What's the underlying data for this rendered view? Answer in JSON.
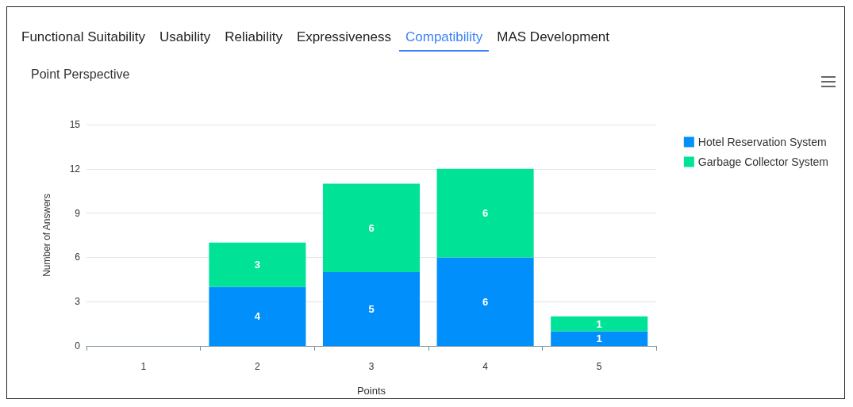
{
  "chart_data": {
    "type": "bar",
    "title": "Point Perspective",
    "xlabel": "Points",
    "ylabel": "Number of Answers",
    "annotations": [
      "Functional Suitability",
      "Usability",
      "Reliability",
      "Expressiveness",
      "Compatibility",
      "MAS Development"
    ],
    "categories": [
      "1",
      "2",
      "3",
      "4",
      "5"
    ],
    "series": [
      {
        "name": "Hotel Reservation System",
        "color": "#008ffb",
        "values": [
          0,
          4,
          5,
          6,
          1
        ],
        "value_labels": [
          null,
          "4",
          "5",
          "6",
          "1"
        ]
      },
      {
        "name": "Garbage Collector System",
        "color": "#00e396",
        "values": [
          0,
          3,
          6,
          6,
          1
        ],
        "value_labels": [
          null,
          "3",
          "6",
          "6",
          "1"
        ]
      }
    ],
    "stacked": true,
    "ylim": [
      0,
      15
    ],
    "yticks": [
      0,
      3,
      6,
      9,
      12,
      15
    ],
    "grid": "y",
    "legend": "top right"
  }
}
